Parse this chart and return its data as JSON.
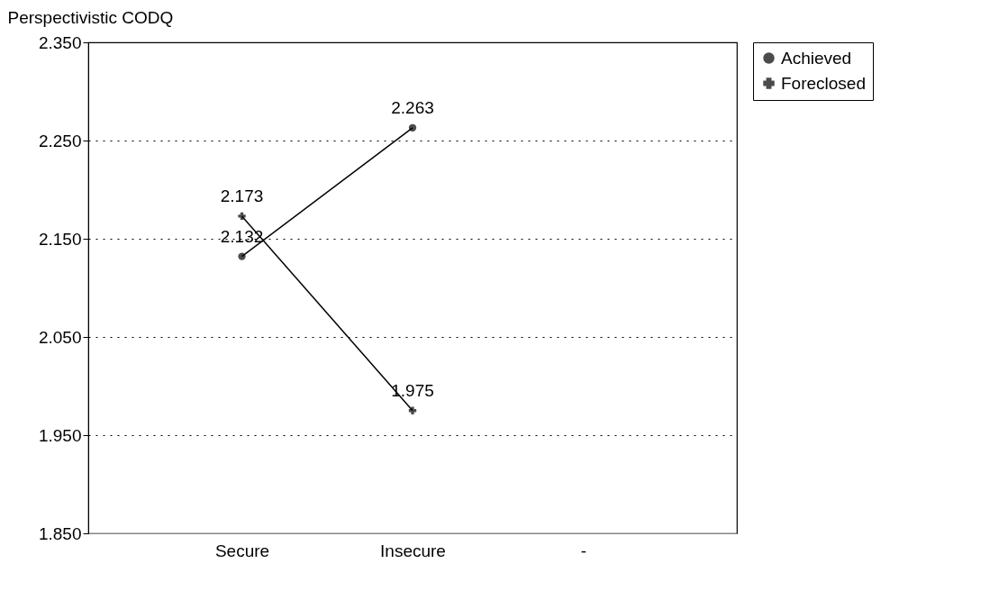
{
  "chart_data": {
    "type": "line",
    "ylabel": "Perspectivistic CODQ",
    "categories": [
      "Secure",
      "Insecure",
      "-"
    ],
    "series": [
      {
        "name": "Achieved",
        "color": "#000000",
        "marker": "circle",
        "values": [
          2.132,
          2.263,
          null
        ]
      },
      {
        "name": "Foreclosed",
        "color": "#000000",
        "marker": "cross",
        "values": [
          2.173,
          1.975,
          null
        ]
      }
    ],
    "ylim": [
      1.85,
      2.35
    ],
    "yticks": [
      {
        "value": 1.85,
        "label": "1.850"
      },
      {
        "value": 1.95,
        "label": "1.950"
      },
      {
        "value": 2.05,
        "label": "2.050"
      },
      {
        "value": 2.15,
        "label": "2.150"
      },
      {
        "value": 2.25,
        "label": "2.250"
      },
      {
        "value": 2.35,
        "label": "2.350"
      }
    ],
    "grid": "y",
    "legend": "right",
    "data_labels": true,
    "line_style": "solid"
  }
}
